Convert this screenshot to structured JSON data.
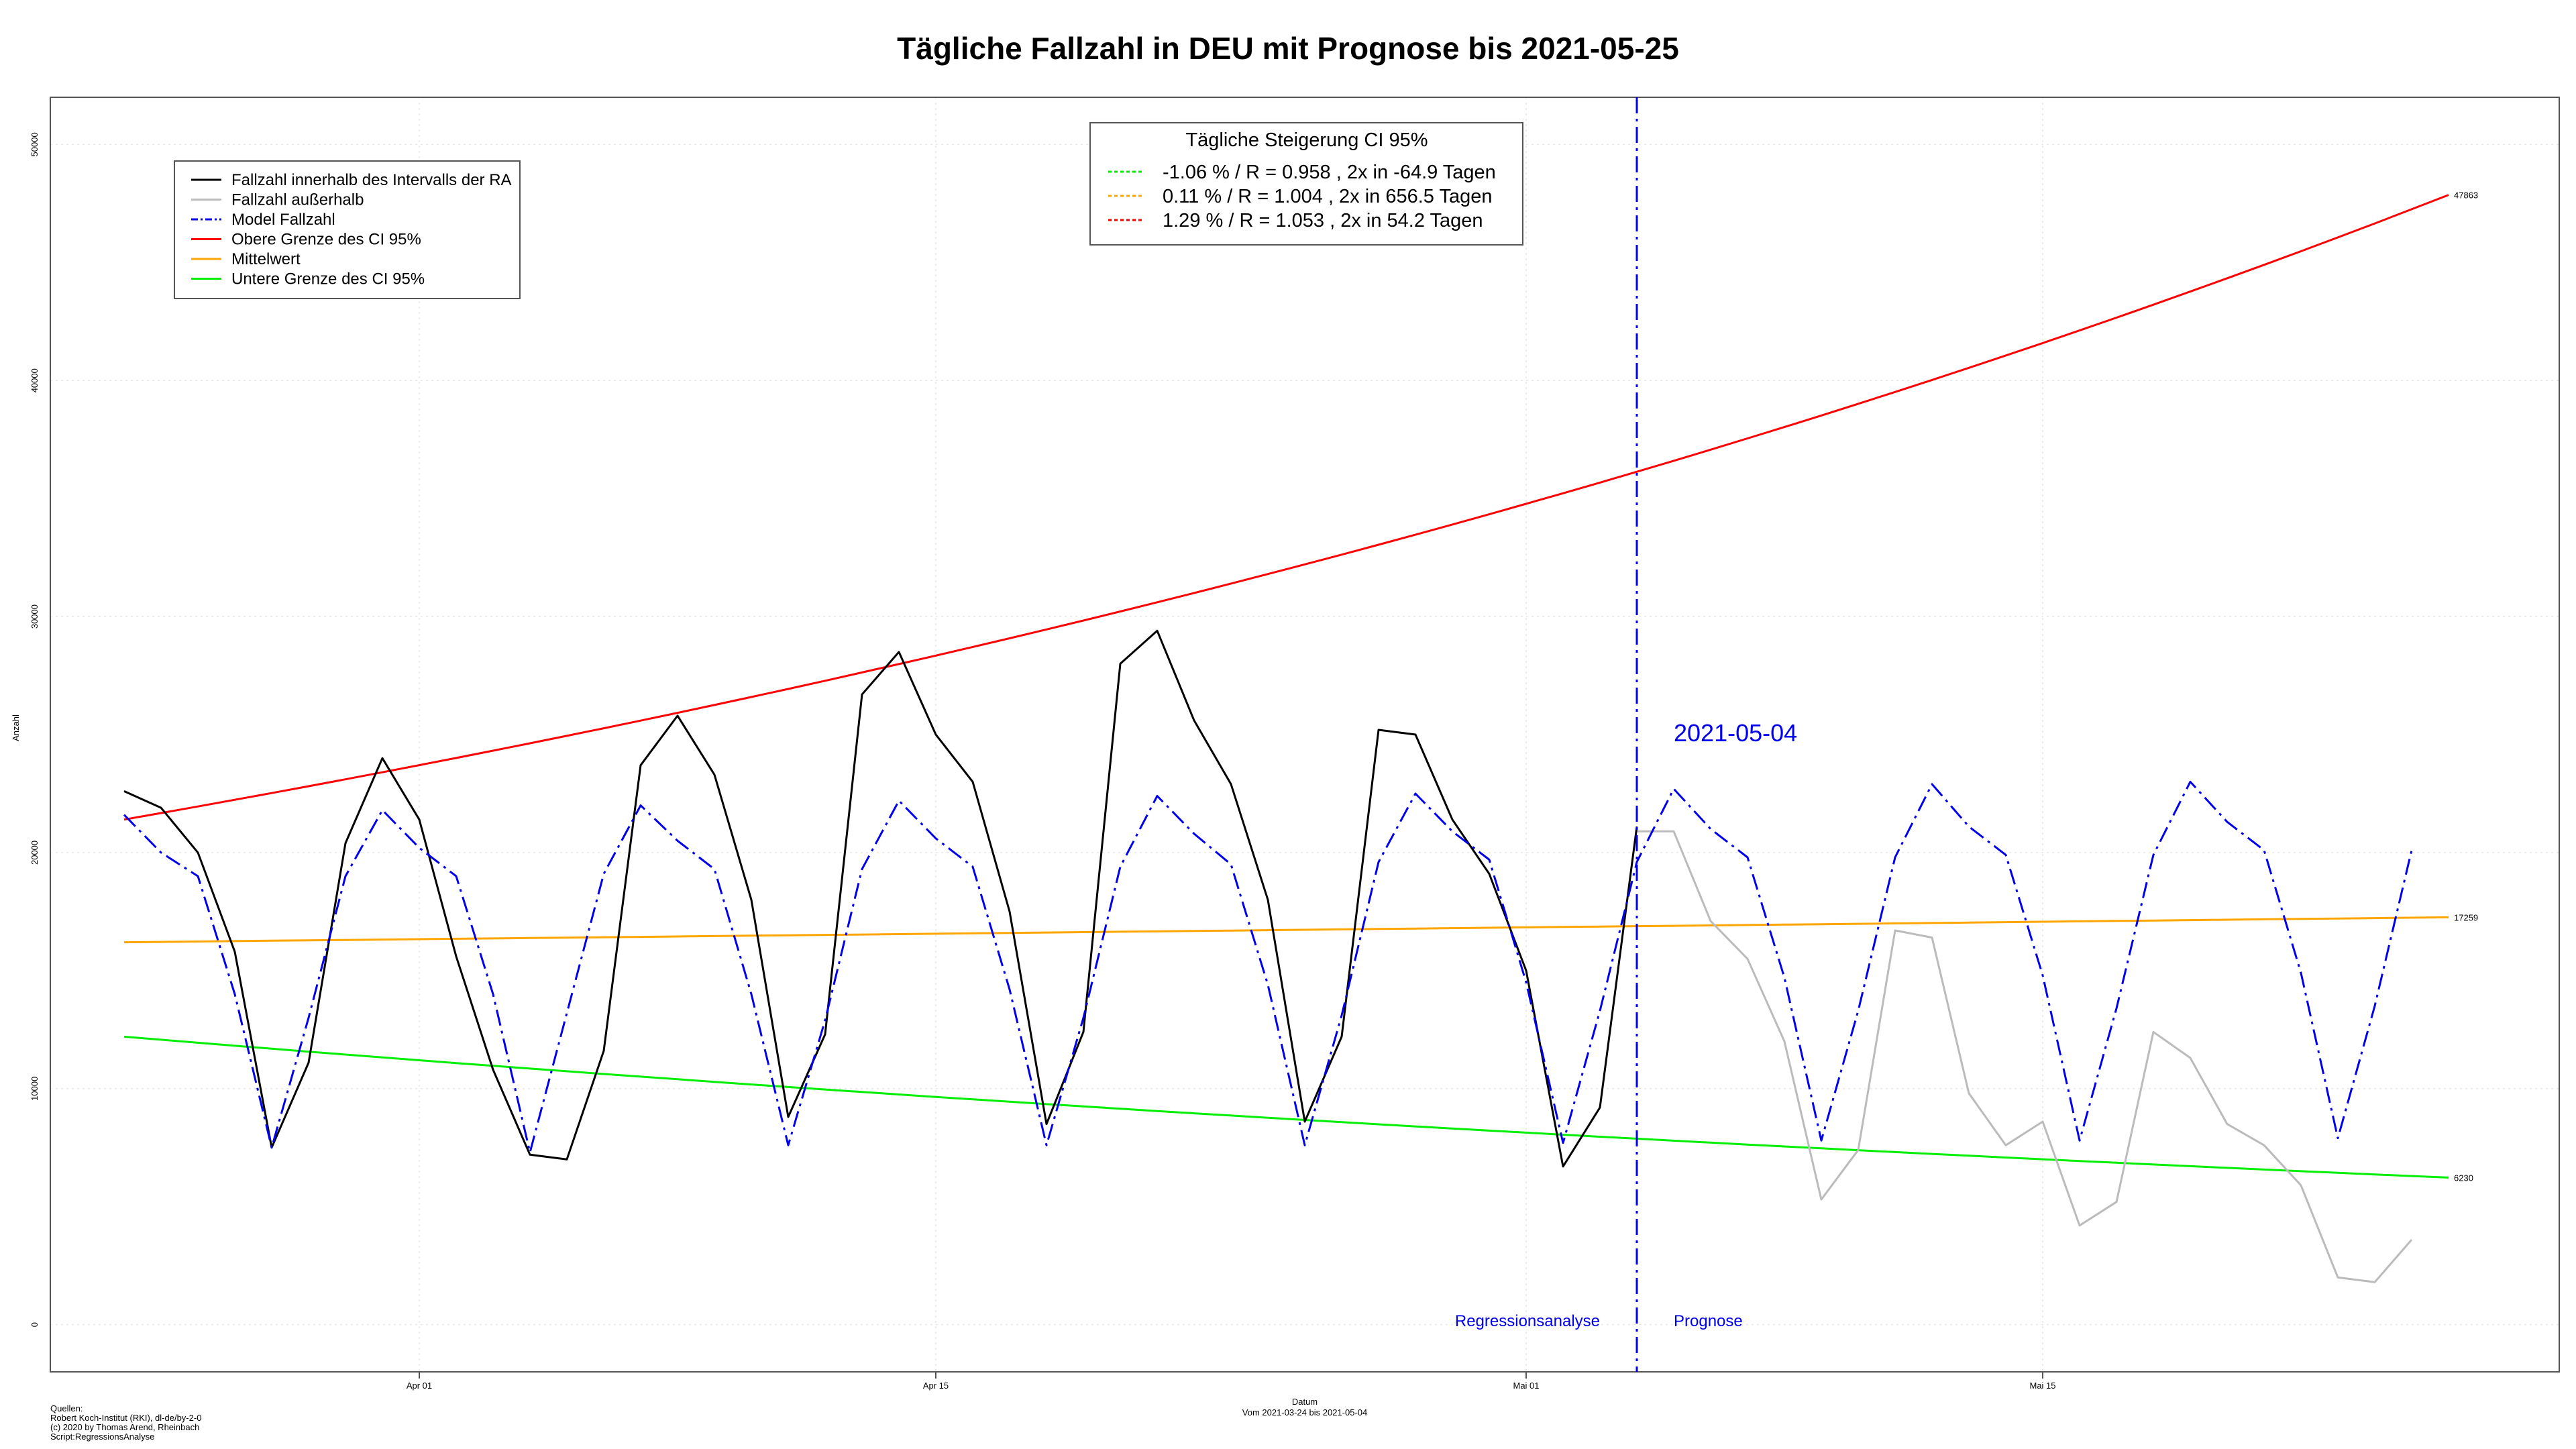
{
  "chart_data": {
    "type": "line",
    "title": "Tägliche Fallzahl in DEU mit Prognose bis 2021-05-25",
    "xlabel": "Datum",
    "xsublabel": "Vom 2021-03-24 bis 2021-05-04",
    "ylabel": "Anzahl",
    "x_range": [
      "2021-03-22",
      "2021-05-29"
    ],
    "ylim": [
      -2000,
      52000
    ],
    "x_ticks": [
      {
        "date": "2021-04-01",
        "label": "Apr 01"
      },
      {
        "date": "2021-04-15",
        "label": "Apr 15"
      },
      {
        "date": "2021-05-01",
        "label": "Mai 01"
      },
      {
        "date": "2021-05-15",
        "label": "Mai 15"
      }
    ],
    "y_ticks": [
      0,
      10000,
      20000,
      30000,
      40000,
      50000
    ],
    "grid": true,
    "legend": {
      "position": "top-left",
      "items": [
        {
          "label": "Fallzahl innerhalb des Intervalls der RA",
          "color": "#000000",
          "dash": "solid"
        },
        {
          "label": "Fallzahl außerhalb",
          "color": "#bbbbbb",
          "dash": "solid"
        },
        {
          "label": "Model Fallzahl",
          "color": "#0000ee",
          "dash": "dashdot"
        },
        {
          "label": "Obere Grenze des CI 95%",
          "color": "#ff0000",
          "dash": "solid"
        },
        {
          "label": "Mittelwert",
          "color": "#ffa500",
          "dash": "solid"
        },
        {
          "label": "Untere Grenze des CI 95%",
          "color": "#00ee00",
          "dash": "solid"
        }
      ]
    },
    "ci_box": {
      "position": "top-center",
      "title": "Tägliche Steigerung CI  95%",
      "items": [
        {
          "label": "-1.06 % / R = 0.958 , 2x in -64.9 Tagen",
          "color": "#00ee00"
        },
        {
          "label": "0.11 % / R = 1.004 , 2x in 656.5 Tagen",
          "color": "#ffa500"
        },
        {
          "label": "1.29 % / R = 1.053 , 2x in 54.2 Tagen",
          "color": "#ff0000"
        }
      ]
    },
    "series": [
      {
        "name": "Fallzahl innerhalb des Intervalls der RA",
        "color": "#000000",
        "dates": [
          "2021-03-24",
          "2021-03-25",
          "2021-03-26",
          "2021-03-27",
          "2021-03-28",
          "2021-03-29",
          "2021-03-30",
          "2021-03-31",
          "2021-04-01",
          "2021-04-02",
          "2021-04-03",
          "2021-04-04",
          "2021-04-05",
          "2021-04-06",
          "2021-04-07",
          "2021-04-08",
          "2021-04-09",
          "2021-04-10",
          "2021-04-11",
          "2021-04-12",
          "2021-04-13",
          "2021-04-14",
          "2021-04-15",
          "2021-04-16",
          "2021-04-17",
          "2021-04-18",
          "2021-04-19",
          "2021-04-20",
          "2021-04-21",
          "2021-04-22",
          "2021-04-23",
          "2021-04-24",
          "2021-04-25",
          "2021-04-26",
          "2021-04-27",
          "2021-04-28",
          "2021-04-29",
          "2021-04-30",
          "2021-05-01",
          "2021-05-02",
          "2021-05-03",
          "2021-05-04"
        ],
        "values": [
          22600,
          21900,
          20000,
          15800,
          7500,
          11100,
          20400,
          24000,
          21400,
          15600,
          10800,
          7200,
          7000,
          11600,
          23700,
          25800,
          23300,
          18000,
          8800,
          12300,
          26700,
          28500,
          25000,
          23000,
          17500,
          8500,
          12400,
          28000,
          29400,
          25600,
          22900,
          18000,
          8600,
          12200,
          25200,
          25000,
          21400,
          19100,
          15000,
          6700,
          9200,
          21100
        ]
      },
      {
        "name": "Fallzahl außerhalb",
        "color": "#bbbbbb",
        "dates": [
          "2021-05-04",
          "2021-05-05",
          "2021-05-06",
          "2021-05-07",
          "2021-05-08",
          "2021-05-09",
          "2021-05-10",
          "2021-05-11",
          "2021-05-12",
          "2021-05-13",
          "2021-05-14",
          "2021-05-15",
          "2021-05-16",
          "2021-05-17",
          "2021-05-18",
          "2021-05-19",
          "2021-05-20",
          "2021-05-21",
          "2021-05-22",
          "2021-05-23",
          "2021-05-24",
          "2021-05-25"
        ],
        "values": [
          20900,
          20900,
          17100,
          15500,
          12000,
          5300,
          7400,
          16700,
          16400,
          9800,
          7600,
          8600,
          4200,
          5200,
          12400,
          11300,
          8500,
          7600,
          5900,
          2000,
          1800,
          3600
        ]
      },
      {
        "name": "Model Fallzahl",
        "color": "#0000ee",
        "dates": [
          "2021-03-24",
          "2021-03-25",
          "2021-03-26",
          "2021-03-27",
          "2021-03-28",
          "2021-03-29",
          "2021-03-30",
          "2021-03-31",
          "2021-04-01",
          "2021-04-02",
          "2021-04-03",
          "2021-04-04",
          "2021-04-05",
          "2021-04-06",
          "2021-04-07",
          "2021-04-08",
          "2021-04-09",
          "2021-04-10",
          "2021-04-11",
          "2021-04-12",
          "2021-04-13",
          "2021-04-14",
          "2021-04-15",
          "2021-04-16",
          "2021-04-17",
          "2021-04-18",
          "2021-04-19",
          "2021-04-20",
          "2021-04-21",
          "2021-04-22",
          "2021-04-23",
          "2021-04-24",
          "2021-04-25",
          "2021-04-26",
          "2021-04-27",
          "2021-04-28",
          "2021-04-29",
          "2021-04-30",
          "2021-05-01",
          "2021-05-02",
          "2021-05-03",
          "2021-05-04",
          "2021-05-05",
          "2021-05-06",
          "2021-05-07",
          "2021-05-08",
          "2021-05-09",
          "2021-05-10",
          "2021-05-11",
          "2021-05-12",
          "2021-05-13",
          "2021-05-14",
          "2021-05-15",
          "2021-05-16",
          "2021-05-17",
          "2021-05-18",
          "2021-05-19",
          "2021-05-20",
          "2021-05-21",
          "2021-05-22",
          "2021-05-23",
          "2021-05-24",
          "2021-05-25"
        ],
        "values": [
          21600,
          20000,
          19000,
          14000,
          7500,
          13000,
          19000,
          21800,
          20200,
          19000,
          14000,
          7300,
          13200,
          19100,
          22000,
          20500,
          19300,
          14000,
          7600,
          12900,
          19300,
          22200,
          20600,
          19400,
          14200,
          7600,
          13000,
          19400,
          22400,
          20800,
          19500,
          14400,
          7600,
          13100,
          19600,
          22500,
          20900,
          19700,
          14500,
          7700,
          13300,
          19600,
          22700,
          21000,
          19800,
          14700,
          7800,
          13300,
          19800,
          22900,
          21100,
          19900,
          14800,
          7800,
          13400,
          19900,
          23000,
          21300,
          20100,
          14900,
          7900,
          13500,
          20100
        ]
      },
      {
        "name": "Obere Grenze des CI 95%",
        "color": "#ff0000",
        "start_date": "2021-03-24",
        "end_date": "2021-05-26",
        "start_value": 21400,
        "end_value": 47863,
        "growth": "exponential",
        "end_label": "47863"
      },
      {
        "name": "Mittelwert",
        "color": "#ffa500",
        "start_date": "2021-03-24",
        "end_date": "2021-05-26",
        "start_value": 16200,
        "end_value": 17259,
        "growth": "exponential",
        "end_label": "17259"
      },
      {
        "name": "Untere Grenze des CI 95%",
        "color": "#00ee00",
        "start_date": "2021-03-24",
        "end_date": "2021-05-26",
        "start_value": 12200,
        "end_value": 6230,
        "growth": "exponential",
        "end_label": "6230"
      }
    ],
    "annotations": {
      "vline_date": "2021-05-04",
      "vline_label": "2021-05-04",
      "left_label": "Regressionsanalyse",
      "right_label": "Prognose"
    }
  },
  "sources": {
    "lines": [
      "Quellen:",
      "Robert Koch-Institut (RKI), dl-de/by-2-0",
      "(c) 2020 by Thomas Arend, Rheinbach",
      "Script:RegressionsAnalyse"
    ]
  }
}
